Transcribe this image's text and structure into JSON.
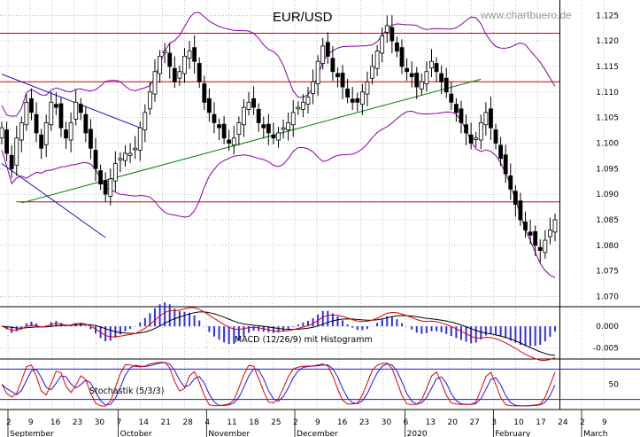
{
  "chart_data": [
    {
      "type": "candlestick",
      "panel": "price",
      "title": "EUR/USD",
      "watermark": "www.chartbuero.de",
      "ylim": [
        1.068,
        1.128
      ],
      "yticks": [
        1.07,
        1.075,
        1.08,
        1.085,
        1.09,
        1.095,
        1.1,
        1.105,
        1.11,
        1.115,
        1.12,
        1.125
      ],
      "resistance_lines": [
        1.1215,
        1.112,
        1.0885
      ],
      "trendline": {
        "from": [
          4,
          1.0883
        ],
        "to": [
          97,
          1.1125
        ]
      },
      "down_channel": [
        {
          "from": [
            0,
            1.1135
          ],
          "to": [
            28,
            1.103
          ]
        },
        {
          "from": [
            0,
            1.096
          ],
          "to": [
            21,
            1.0815
          ]
        }
      ],
      "closes": [
        1.103,
        1.098,
        1.095,
        1.101,
        1.104,
        1.108,
        1.106,
        1.102,
        1.099,
        1.104,
        1.108,
        1.107,
        1.103,
        1.101,
        1.104,
        1.108,
        1.106,
        1.102,
        1.099,
        1.095,
        1.092,
        1.09,
        1.093,
        1.096,
        1.097,
        1.098,
        1.098,
        1.099,
        1.103,
        1.106,
        1.11,
        1.114,
        1.117,
        1.118,
        1.115,
        1.112,
        1.114,
        1.117,
        1.118,
        1.116,
        1.112,
        1.108,
        1.106,
        1.104,
        1.103,
        1.101,
        1.1,
        1.101,
        1.104,
        1.107,
        1.108,
        1.107,
        1.104,
        1.103,
        1.102,
        1.101,
        1.102,
        1.103,
        1.104,
        1.106,
        1.107,
        1.108,
        1.109,
        1.112,
        1.116,
        1.119,
        1.117,
        1.114,
        1.113,
        1.111,
        1.109,
        1.108,
        1.108,
        1.11,
        1.112,
        1.115,
        1.118,
        1.121,
        1.123,
        1.12,
        1.118,
        1.115,
        1.114,
        1.113,
        1.111,
        1.112,
        1.114,
        1.116,
        1.114,
        1.112,
        1.11,
        1.108,
        1.106,
        1.104,
        1.102,
        1.1,
        1.101,
        1.104,
        1.106,
        1.103,
        1.1,
        1.097,
        1.094,
        1.091,
        1.088,
        1.085,
        1.083,
        1.082,
        1.08,
        1.079,
        1.081,
        1.083,
        1.085
      ]
    },
    {
      "type": "line",
      "panel": "macd",
      "label": "MACD (12/26/9) mit Histogramm",
      "ylim": [
        -0.0075,
        0.0045
      ],
      "yticks": [
        0.0,
        -0.005
      ],
      "ytick_labels": [
        "0.000",
        "-0.005"
      ]
    },
    {
      "type": "line",
      "panel": "stochastic",
      "label": "Stochastik (5/3/3)",
      "ylim": [
        0,
        100
      ],
      "levels": [
        80,
        20
      ],
      "yticks": [
        50
      ],
      "ytick_labels": [
        "50"
      ]
    }
  ],
  "x_axis": {
    "day_labels": [
      "2",
      "9",
      "16",
      "23",
      "30",
      "7",
      "14",
      "21",
      "28",
      "4",
      "11",
      "18",
      "25",
      "2",
      "9",
      "16",
      "23",
      "30",
      "6",
      "13",
      "20",
      "27",
      "3",
      "10",
      "17",
      "24",
      "2",
      "9"
    ],
    "month_labels": [
      {
        "label": "September",
        "index": 0
      },
      {
        "label": "October",
        "index": 5
      },
      {
        "label": "November",
        "index": 9
      },
      {
        "label": "December",
        "index": 13
      },
      {
        "label": "2020",
        "index": 18
      },
      {
        "label": "February",
        "index": 22
      },
      {
        "label": "March",
        "index": 26
      }
    ]
  },
  "colors": {
    "candle": "#000000",
    "resistance": "#cc0000",
    "trendline": "#008000",
    "channel": "#1a1ac8",
    "bollinger": "#8b00a8",
    "macd": "#000000",
    "signal": "#e00000",
    "histogram": "#3030e0",
    "stoch_k": "#e00000",
    "stoch_d": "#1a1ae0",
    "grid": "#999999"
  }
}
